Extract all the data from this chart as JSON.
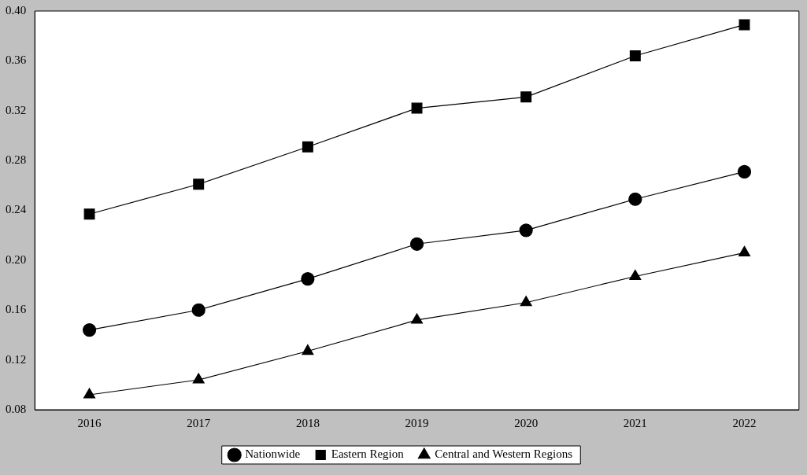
{
  "chart_data": {
    "type": "line",
    "categories": [
      "2016",
      "2017",
      "2018",
      "2019",
      "2020",
      "2021",
      "2022"
    ],
    "series": [
      {
        "name": "Nationwide",
        "color": "#000000",
        "marker": "circle",
        "values": [
          0.144,
          0.16,
          0.185,
          0.213,
          0.224,
          0.249,
          0.271
        ]
      },
      {
        "name": "Eastern Region",
        "color": "#000000",
        "marker": "square",
        "values": [
          0.237,
          0.261,
          0.291,
          0.322,
          0.331,
          0.364,
          0.389
        ]
      },
      {
        "name": "Central and Western Regions",
        "color": "#000000",
        "marker": "triangle",
        "values": [
          0.092,
          0.104,
          0.127,
          0.152,
          0.166,
          0.187,
          0.206
        ]
      }
    ],
    "ylim": [
      0.08,
      0.4
    ],
    "yticks": [
      0.08,
      0.12,
      0.16,
      {
        "value": 0.2,
        "label": "0.20"
      },
      0.24,
      0.28,
      0.32,
      0.36,
      {
        "value": 0.4,
        "label": "0.40"
      }
    ],
    "grid": false,
    "legend": "bottom",
    "line_style": "solid"
  }
}
